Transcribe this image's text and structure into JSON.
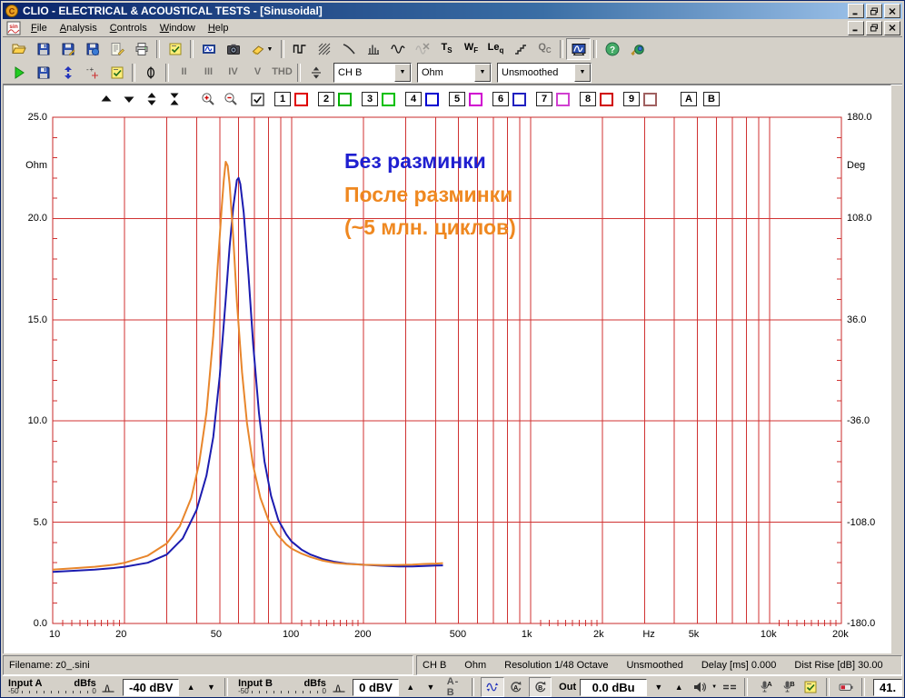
{
  "window": {
    "title": "CLIO - ELECTRICAL & ACOUSTICAL TESTS - [Sinusoidal]"
  },
  "menu": {
    "items": [
      "File",
      "Analysis",
      "Controls",
      "Window",
      "Help"
    ]
  },
  "toolbars": {
    "main": [
      {
        "type": "icon",
        "name": "open-file-button",
        "icon": "open-folder"
      },
      {
        "type": "icon",
        "name": "save-button",
        "icon": "save"
      },
      {
        "type": "icon",
        "name": "save-as-button",
        "icon": "save-as"
      },
      {
        "type": "icon",
        "name": "save-session-button",
        "icon": "save-session"
      },
      {
        "type": "icon",
        "name": "export-notes-button",
        "icon": "export-notes"
      },
      {
        "type": "icon",
        "name": "print-button",
        "icon": "print"
      },
      {
        "type": "sep"
      },
      {
        "type": "icon",
        "name": "options-button",
        "icon": "options-checklist"
      },
      {
        "type": "sep"
      },
      {
        "type": "icon",
        "name": "measurement-window-button",
        "icon": "measurement-film"
      },
      {
        "type": "icon",
        "name": "snapshot-button",
        "icon": "camera"
      },
      {
        "type": "icon",
        "name": "erase-button",
        "icon": "eraser",
        "dropdown": true
      },
      {
        "type": "sep"
      },
      {
        "type": "icon",
        "name": "mls-analysis-button",
        "icon": "mls"
      },
      {
        "type": "icon",
        "name": "noise-analysis-button",
        "icon": "noise"
      },
      {
        "type": "icon",
        "name": "decay-analysis-button",
        "icon": "decay"
      },
      {
        "type": "icon",
        "name": "waterfall-analysis-button",
        "icon": "waterfall"
      },
      {
        "type": "icon",
        "name": "sinusoidal-analysis-button",
        "icon": "sine"
      },
      {
        "type": "icon",
        "name": "burst-analysis-button",
        "icon": "sine-crossed",
        "disabled": true
      },
      {
        "type": "text",
        "name": "ts-analysis-button",
        "label": "T",
        "sub": "S"
      },
      {
        "type": "text",
        "name": "wow-flutter-analysis-button",
        "label": "W",
        "sub": "F"
      },
      {
        "type": "text",
        "name": "leq-analysis-button",
        "label": "Le",
        "sub": "q"
      },
      {
        "type": "icon",
        "name": "linearity-analysis-button",
        "icon": "stairs"
      },
      {
        "type": "text",
        "name": "qc-button",
        "label": "Q",
        "sub": "C",
        "disabled": true
      },
      {
        "type": "sep"
      },
      {
        "type": "icon",
        "name": "active-measurement-button",
        "icon": "active-measurement",
        "pressed": true
      },
      {
        "type": "sep"
      },
      {
        "type": "icon",
        "name": "help-button",
        "icon": "help"
      },
      {
        "type": "icon",
        "name": "license-button",
        "icon": "license-key"
      }
    ],
    "measure": [
      {
        "type": "icon",
        "name": "start-measurement-button",
        "icon": "play"
      },
      {
        "type": "icon",
        "name": "save-measurement-button",
        "icon": "save"
      },
      {
        "type": "icon",
        "name": "autoscale-button",
        "icon": "scale-arrows"
      },
      {
        "type": "icon",
        "name": "marker-button",
        "icon": "marker-plusminus"
      },
      {
        "type": "icon",
        "name": "measure-settings-button",
        "icon": "options-checklist"
      },
      {
        "type": "sep"
      },
      {
        "type": "icon",
        "name": "phase-button",
        "icon": "phase"
      },
      {
        "type": "sep"
      },
      {
        "type": "text",
        "name": "harmonic-2-button",
        "label": "II",
        "disabled": true
      },
      {
        "type": "text",
        "name": "harmonic-3-button",
        "label": "III",
        "disabled": true
      },
      {
        "type": "text",
        "name": "harmonic-4-button",
        "label": "IV",
        "disabled": true
      },
      {
        "type": "text",
        "name": "harmonic-5-button",
        "label": "V",
        "disabled": true
      },
      {
        "type": "text",
        "name": "thd-button",
        "label": "THD",
        "disabled": true
      },
      {
        "type": "sep"
      },
      {
        "type": "icon",
        "name": "scale-divide-button",
        "icon": "divide-scale"
      }
    ],
    "measure_dropdowns": {
      "channel": "CH B",
      "unit": "Ohm",
      "smoothing": "Unsmoothed"
    }
  },
  "chart_toolbar": {
    "nav": [
      {
        "name": "shift-up-button",
        "icon": "move-up"
      },
      {
        "name": "shift-down-button",
        "icon": "move-down"
      },
      {
        "name": "expand-scale-button",
        "icon": "expand-scale"
      },
      {
        "name": "compress-scale-button",
        "icon": "compress-scale"
      }
    ],
    "zoom": [
      {
        "name": "zoom-in-button",
        "icon": "zoom-in"
      },
      {
        "name": "zoom-out-button",
        "icon": "zoom-out"
      }
    ],
    "main_checkbox_checked": true,
    "slots": [
      {
        "num": "1",
        "color": "#e00000"
      },
      {
        "num": "2",
        "color": "#00b000"
      },
      {
        "num": "3",
        "color": "#00c000"
      },
      {
        "num": "4",
        "color": "#0000d0"
      },
      {
        "num": "5",
        "color": "#d000d0"
      },
      {
        "num": "6",
        "color": "#2020c0"
      },
      {
        "num": "7",
        "color": "#d040d0"
      },
      {
        "num": "8",
        "color": "#d00000"
      },
      {
        "num": "9",
        "color": "#a06060"
      }
    ],
    "ab": [
      "A",
      "B"
    ]
  },
  "chart_data": {
    "type": "line",
    "x_scale": "log",
    "xlim": [
      10,
      20000
    ],
    "ylim_left": [
      0,
      25
    ],
    "ylim_right": [
      -180,
      180
    ],
    "xlabel": "Hz",
    "ylabel_left": "Ohm",
    "ylabel_right": "Deg",
    "grid": "red log grid, verticals at 1-9 mantissa steps, horizontals every 5 Ohm",
    "x_ticks": [
      {
        "f": 10,
        "label": "10"
      },
      {
        "f": 20,
        "label": "20"
      },
      {
        "f": 50,
        "label": "50"
      },
      {
        "f": 100,
        "label": "100"
      },
      {
        "f": 200,
        "label": "200"
      },
      {
        "f": 500,
        "label": "500"
      },
      {
        "f": 1000,
        "label": "1k"
      },
      {
        "f": 2000,
        "label": "2k"
      },
      {
        "f": 5000,
        "label": "5k"
      },
      {
        "f": 10000,
        "label": "10k"
      },
      {
        "f": 20000,
        "label": "20k"
      }
    ],
    "y_ticks_left": [
      "25.0",
      "20.0",
      "15.0",
      "10.0",
      "5.0",
      "0.0"
    ],
    "y_ticks_right": [
      "180.0",
      "108.0",
      "36.0",
      "-36.0",
      "-108.0",
      "-180.0"
    ],
    "annotations": [
      {
        "text": "Без разминки",
        "color": "#1f1fd0"
      },
      {
        "text": "После разминки",
        "color": "#ef8820"
      },
      {
        "text": "(~5 млн. циклов)",
        "color": "#ef8820"
      }
    ],
    "series": [
      {
        "name": "Без разминки",
        "color": "#1c1cb0",
        "points": [
          [
            10,
            2.55
          ],
          [
            12,
            2.6
          ],
          [
            15,
            2.66
          ],
          [
            18,
            2.74
          ],
          [
            20,
            2.8
          ],
          [
            25,
            3.0
          ],
          [
            30,
            3.4
          ],
          [
            35,
            4.2
          ],
          [
            40,
            5.6
          ],
          [
            44,
            7.3
          ],
          [
            47,
            9.2
          ],
          [
            50,
            12.2
          ],
          [
            53,
            16.0
          ],
          [
            55,
            18.6
          ],
          [
            57,
            20.6
          ],
          [
            59,
            21.9
          ],
          [
            60,
            22.0
          ],
          [
            61,
            21.7
          ],
          [
            63,
            20.3
          ],
          [
            66,
            17.2
          ],
          [
            69,
            13.8
          ],
          [
            73,
            10.4
          ],
          [
            77,
            8.0
          ],
          [
            82,
            6.3
          ],
          [
            88,
            5.1
          ],
          [
            95,
            4.4
          ],
          [
            100,
            4.05
          ],
          [
            110,
            3.65
          ],
          [
            120,
            3.4
          ],
          [
            135,
            3.18
          ],
          [
            150,
            3.05
          ],
          [
            170,
            2.96
          ],
          [
            200,
            2.9
          ],
          [
            240,
            2.85
          ],
          [
            280,
            2.82
          ],
          [
            320,
            2.82
          ],
          [
            360,
            2.84
          ],
          [
            400,
            2.86
          ],
          [
            430,
            2.87
          ]
        ]
      },
      {
        "name": "После разминки (~5 млн. циклов)",
        "color": "#e8862c",
        "points": [
          [
            10,
            2.66
          ],
          [
            12,
            2.72
          ],
          [
            15,
            2.8
          ],
          [
            18,
            2.9
          ],
          [
            20,
            3.0
          ],
          [
            25,
            3.35
          ],
          [
            30,
            3.95
          ],
          [
            34,
            4.8
          ],
          [
            38,
            6.2
          ],
          [
            41,
            7.9
          ],
          [
            44,
            10.4
          ],
          [
            47,
            14.2
          ],
          [
            49,
            17.6
          ],
          [
            51,
            20.6
          ],
          [
            52,
            21.9
          ],
          [
            53,
            22.8
          ],
          [
            54,
            22.6
          ],
          [
            55,
            21.7
          ],
          [
            57,
            19.0
          ],
          [
            59,
            15.9
          ],
          [
            62,
            12.4
          ],
          [
            65,
            9.9
          ],
          [
            69,
            7.8
          ],
          [
            74,
            6.2
          ],
          [
            80,
            5.1
          ],
          [
            87,
            4.4
          ],
          [
            95,
            3.9
          ],
          [
            100,
            3.7
          ],
          [
            110,
            3.45
          ],
          [
            120,
            3.28
          ],
          [
            135,
            3.1
          ],
          [
            150,
            3.0
          ],
          [
            170,
            2.94
          ],
          [
            200,
            2.9
          ],
          [
            240,
            2.88
          ],
          [
            280,
            2.89
          ],
          [
            320,
            2.91
          ],
          [
            360,
            2.94
          ],
          [
            400,
            2.96
          ],
          [
            430,
            2.98
          ]
        ]
      }
    ]
  },
  "status_bar": {
    "filename": "Filename: z0_.sini",
    "segments": [
      "CH B",
      "Ohm",
      "Resolution 1/48 Octave",
      "Unsmoothed",
      "Delay [ms] 0.000",
      "Dist Rise [dB] 30.00"
    ]
  },
  "bottom_bar": {
    "input_a": {
      "label": "Input A",
      "unit": "dBfs",
      "scale_min": "-50",
      "scale_max": "0",
      "value": "-40 dBV"
    },
    "input_b": {
      "label": "Input B",
      "unit": "dBfs",
      "scale_min": "-50",
      "scale_max": "0",
      "value": "0 dBV"
    },
    "ab_label": "A-B",
    "out": {
      "label": "Out",
      "value": "0.0 dBu"
    },
    "aux_value": "41."
  },
  "colors": {
    "grid_red": "#d03232",
    "plot_border_red": "#c82828",
    "titlebar_blue": "#0a246a",
    "chrome_gray": "#d4d0c8"
  }
}
